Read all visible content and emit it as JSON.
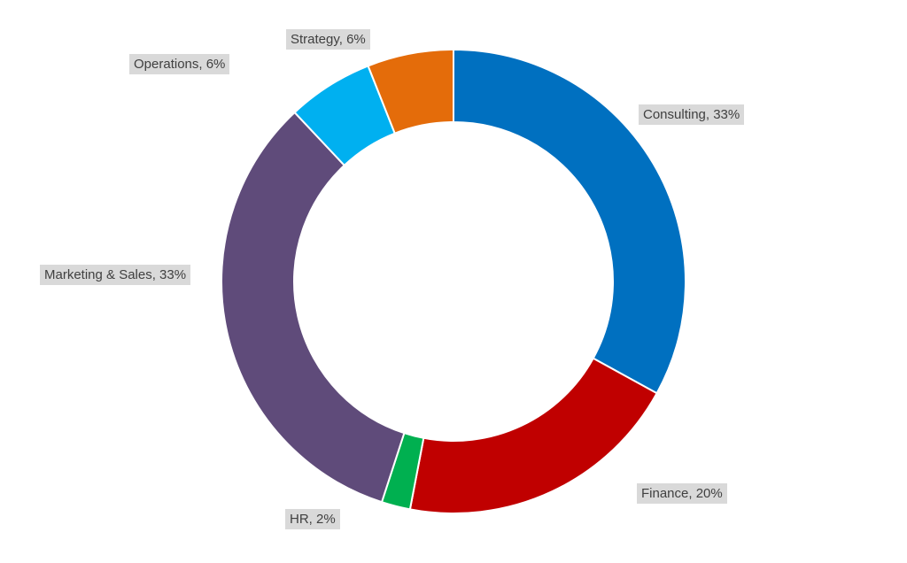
{
  "chart_data": {
    "type": "pie",
    "subtype": "donut",
    "slices": [
      {
        "label": "Consulting",
        "value": 33,
        "color": "#0070c0",
        "data_label": "Consulting, 33%"
      },
      {
        "label": "Finance",
        "value": 20,
        "color": "#c00000",
        "data_label": "Finance, 20%"
      },
      {
        "label": "HR",
        "value": 2,
        "color": "#00b050",
        "data_label": "HR, 2%"
      },
      {
        "label": "Marketing & Sales",
        "value": 33,
        "color": "#5f4b7a",
        "data_label": "Marketing & Sales, 33%"
      },
      {
        "label": "Operations",
        "value": 6,
        "color": "#00b0f0",
        "data_label": "Operations, 6%"
      },
      {
        "label": "Strategy",
        "value": 6,
        "color": "#e46c0a",
        "data_label": "Strategy, 6%"
      }
    ],
    "start_angle_deg": 0,
    "direction": "clockwise",
    "legend": "none",
    "label_background": "#d9d9d9",
    "label_color": "#404040"
  }
}
